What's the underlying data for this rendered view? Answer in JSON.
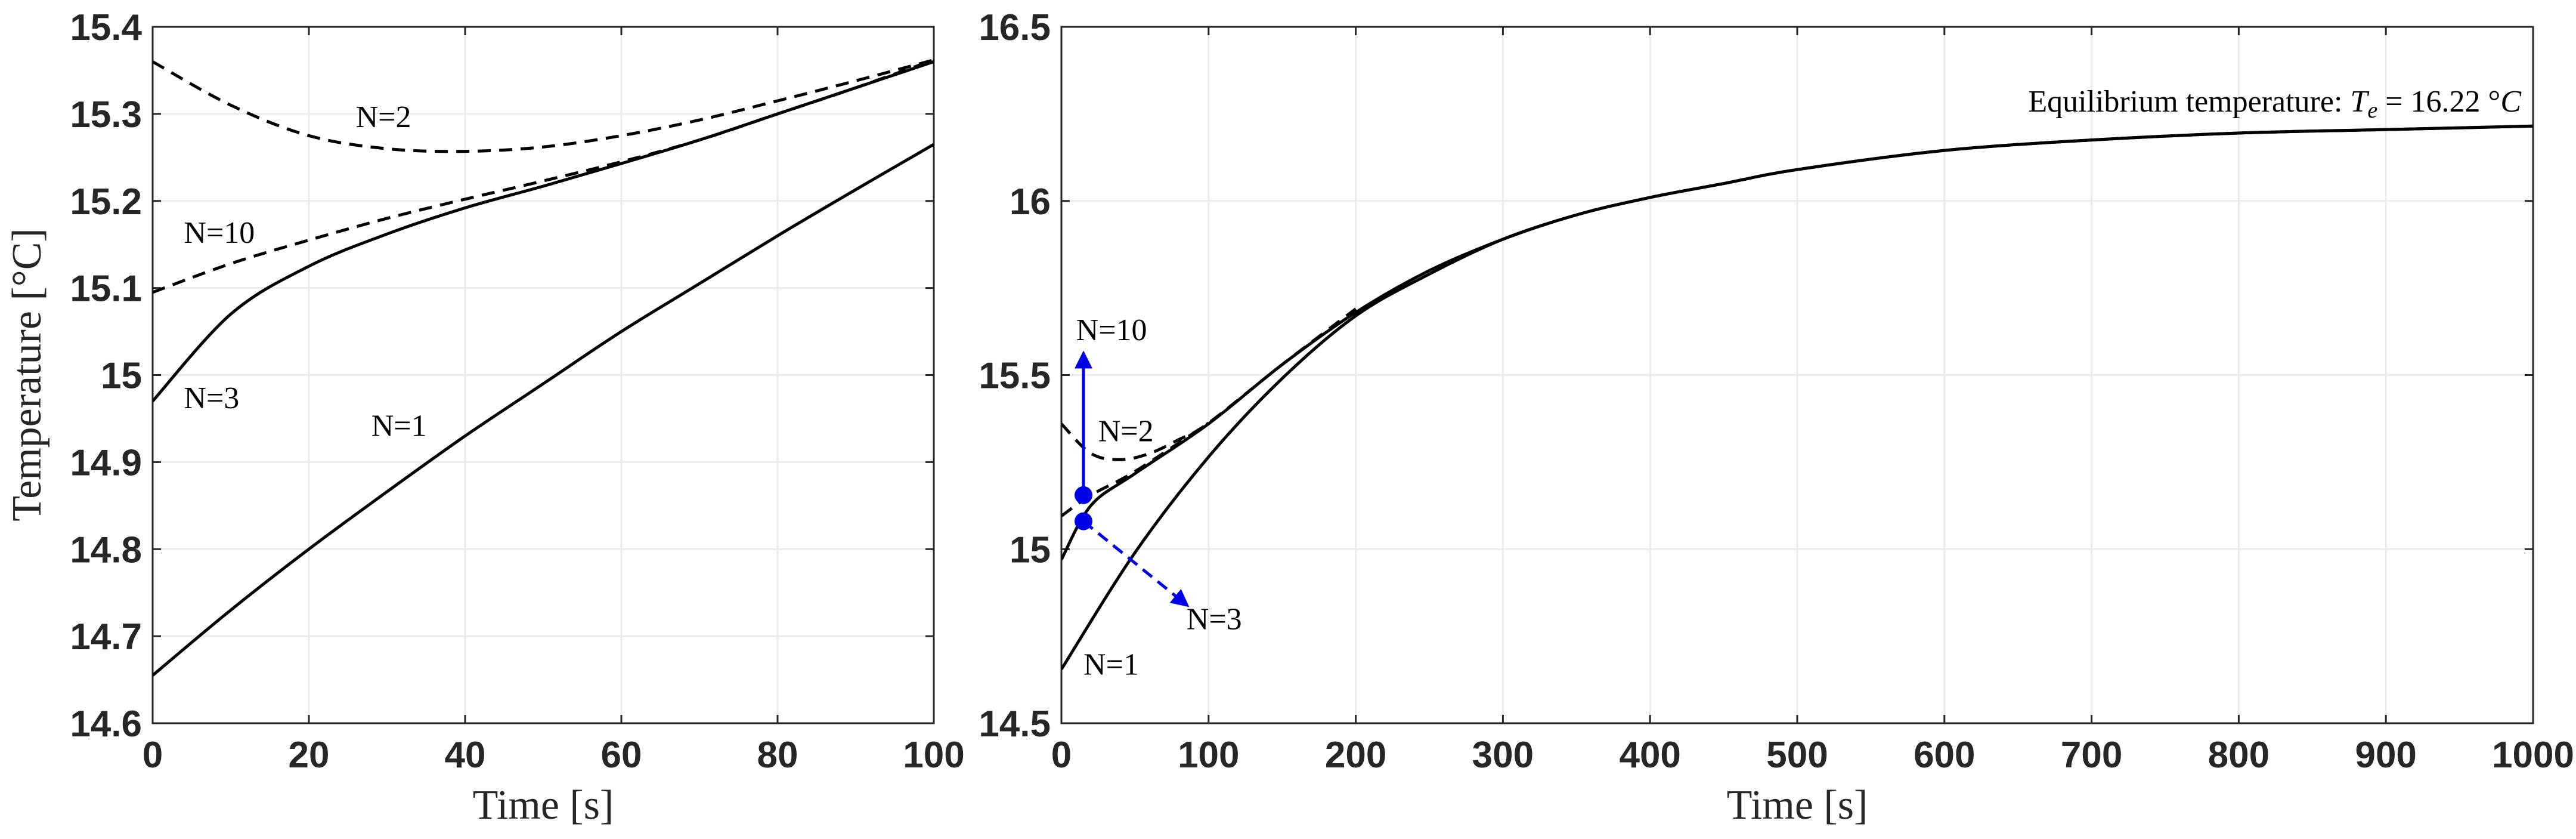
{
  "chart_data": [
    {
      "type": "line",
      "xlabel": "Time [s]",
      "ylabel": "Temperature [°C]",
      "xlim": [
        0,
        100
      ],
      "ylim": [
        14.6,
        15.4
      ],
      "xticks": [
        "0",
        "20",
        "40",
        "60",
        "80",
        "100"
      ],
      "yticks": [
        "14.6",
        "14.7",
        "14.8",
        "14.9",
        "15",
        "15.1",
        "15.2",
        "15.3",
        "15.4"
      ],
      "grid": true,
      "series": [
        {
          "name": "N=1",
          "style": "solid",
          "color": "#000000",
          "x": [
            0,
            10,
            20,
            30,
            40,
            50,
            60,
            70,
            80,
            90,
            100
          ],
          "y": [
            14.655,
            14.73,
            14.8,
            14.866,
            14.93,
            14.99,
            15.05,
            15.105,
            15.16,
            15.213,
            15.265
          ]
        },
        {
          "name": "N=2",
          "style": "dashed",
          "color": "#000000",
          "x": [
            0,
            10,
            20,
            30,
            40,
            50,
            60,
            70,
            80,
            90,
            100
          ],
          "y": [
            15.36,
            15.31,
            15.275,
            15.26,
            15.257,
            15.262,
            15.275,
            15.293,
            15.315,
            15.338,
            15.362
          ]
        },
        {
          "name": "N=3",
          "style": "solid",
          "color": "#000000",
          "x": [
            0,
            10,
            20,
            30,
            40,
            50,
            60,
            70,
            80,
            90,
            100
          ],
          "y": [
            14.97,
            15.07,
            15.125,
            15.162,
            15.192,
            15.217,
            15.243,
            15.27,
            15.3,
            15.33,
            15.36
          ]
        },
        {
          "name": "N=10",
          "style": "dashed",
          "color": "#000000",
          "x": [
            0,
            10,
            20,
            30,
            40,
            50,
            60,
            70,
            80,
            90,
            100
          ],
          "y": [
            15.095,
            15.128,
            15.155,
            15.18,
            15.202,
            15.223,
            15.245,
            15.27,
            15.3,
            15.33,
            15.362
          ]
        }
      ],
      "annotations": [
        {
          "text": "N=2",
          "x": 26,
          "y": 15.285
        },
        {
          "text": "N=10",
          "x": 4,
          "y": 15.152
        },
        {
          "text": "N=3",
          "x": 4,
          "y": 14.962
        },
        {
          "text": "N=1",
          "x": 28,
          "y": 14.93
        }
      ]
    },
    {
      "type": "line",
      "xlabel": "Time [s]",
      "ylabel": "",
      "xlim": [
        0,
        1000
      ],
      "ylim": [
        14.5,
        16.5
      ],
      "xticks": [
        "0",
        "100",
        "200",
        "300",
        "400",
        "500",
        "600",
        "700",
        "800",
        "900",
        "1000"
      ],
      "yticks": [
        "14.5",
        "15",
        "15.5",
        "16",
        "16.5"
      ],
      "grid": true,
      "series": [
        {
          "name": "N=1",
          "style": "solid",
          "color": "#000000",
          "x": [
            0,
            50,
            100,
            150,
            200,
            250,
            300,
            350,
            400,
            450,
            500,
            600,
            700,
            800,
            900,
            1000
          ],
          "y": [
            14.655,
            14.99,
            15.265,
            15.49,
            15.67,
            15.79,
            15.89,
            15.96,
            16.01,
            16.05,
            16.09,
            16.145,
            16.175,
            16.195,
            16.205,
            16.215
          ]
        },
        {
          "name": "N=2",
          "style": "dashed",
          "color": "#000000",
          "x": [
            0,
            20,
            40,
            60,
            80,
            100,
            150,
            200
          ],
          "y": [
            15.36,
            15.275,
            15.257,
            15.275,
            15.315,
            15.362,
            15.53,
            15.69
          ]
        },
        {
          "name": "N=3",
          "style": "solid",
          "color": "#000000",
          "x": [
            0,
            20,
            50,
            100,
            150,
            200,
            250,
            300,
            350,
            400,
            450,
            500,
            600,
            700,
            800,
            900,
            1000
          ],
          "y": [
            14.97,
            15.125,
            15.217,
            15.36,
            15.53,
            15.68,
            15.8,
            15.89,
            15.96,
            16.01,
            16.05,
            16.09,
            16.145,
            16.175,
            16.195,
            16.205,
            16.215
          ]
        },
        {
          "name": "N=10",
          "style": "dashed",
          "color": "#000000",
          "x": [
            0,
            20,
            50,
            100
          ],
          "y": [
            15.095,
            15.155,
            15.223,
            15.362
          ]
        }
      ],
      "markers": [
        {
          "label": "N=10",
          "x": 15,
          "y": 15.155,
          "arrow_to": [
            15,
            15.56
          ],
          "arrow_style": "solid",
          "color": "#0000e6"
        },
        {
          "label": "N=3",
          "x": 15,
          "y": 15.08,
          "arrow_to": [
            85,
            14.84
          ],
          "arrow_style": "dashed",
          "color": "#0000e6"
        }
      ],
      "annotations": [
        {
          "text": "N=10",
          "x": 10,
          "y": 15.6
        },
        {
          "text": "N=2",
          "x": 25,
          "y": 15.31
        },
        {
          "text": "N=3",
          "x": 85,
          "y": 14.77
        },
        {
          "text": "N=1",
          "x": 15,
          "y": 14.64
        }
      ],
      "equilibrium_label_prefix": "Equilibrium temperature: ",
      "equilibrium_symbol": "T",
      "equilibrium_subscript": "e",
      "equilibrium_value_text": " = 16.22 °",
      "equilibrium_unit": "C"
    }
  ]
}
